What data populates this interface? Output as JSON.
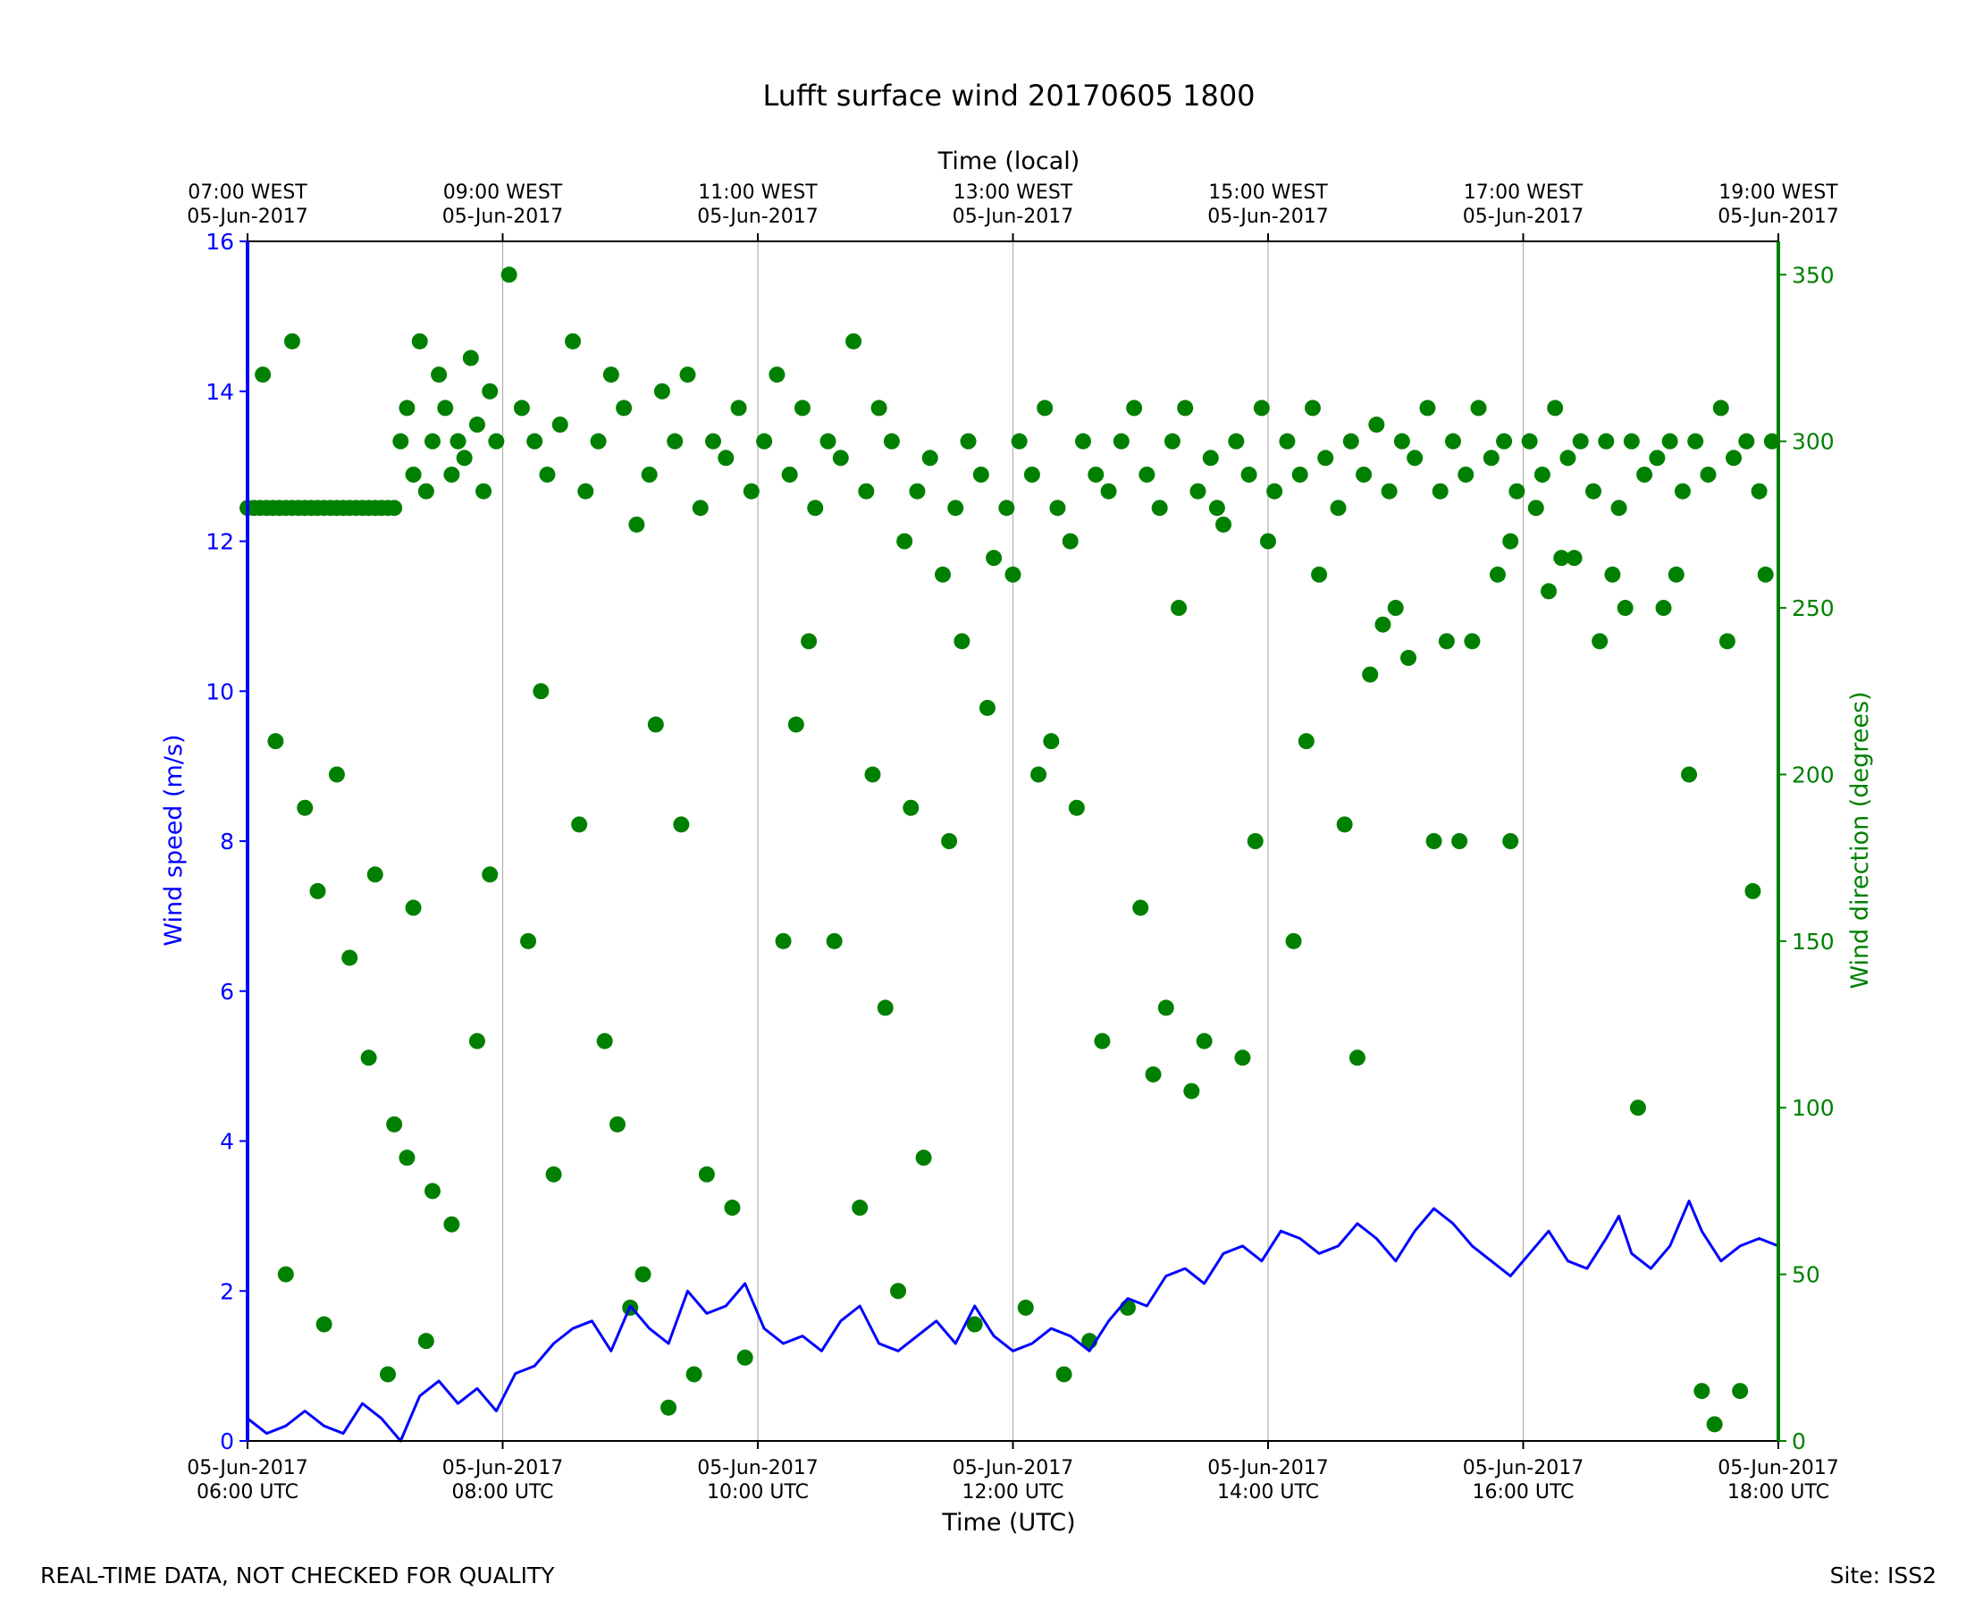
{
  "chart_data": {
    "type": "line",
    "title": "Lufft surface wind 20170605 1800",
    "xlabel": "Time (UTC)",
    "top_xlabel": "Time (local)",
    "ylabel": "Wind speed (m/s)",
    "y2label": "Wind direction (degrees)",
    "ylim": [
      0,
      16
    ],
    "y2lim": [
      0,
      360
    ],
    "xlim_hours": [
      6,
      18
    ],
    "grid": "vertical at major x ticks",
    "yticks": [
      0,
      2,
      4,
      6,
      8,
      10,
      12,
      14,
      16
    ],
    "y2ticks": [
      0,
      50,
      100,
      150,
      200,
      250,
      300,
      350
    ],
    "bottom_ticks": [
      {
        "hour": 6,
        "line1": "05-Jun-2017",
        "line2": "06:00 UTC"
      },
      {
        "hour": 8,
        "line1": "05-Jun-2017",
        "line2": "08:00 UTC"
      },
      {
        "hour": 10,
        "line1": "05-Jun-2017",
        "line2": "10:00 UTC"
      },
      {
        "hour": 12,
        "line1": "05-Jun-2017",
        "line2": "12:00 UTC"
      },
      {
        "hour": 14,
        "line1": "05-Jun-2017",
        "line2": "14:00 UTC"
      },
      {
        "hour": 16,
        "line1": "05-Jun-2017",
        "line2": "16:00 UTC"
      },
      {
        "hour": 18,
        "line1": "05-Jun-2017",
        "line2": "18:00 UTC"
      }
    ],
    "top_ticks": [
      {
        "hour": 6,
        "line1": "07:00 WEST",
        "line2": "05-Jun-2017"
      },
      {
        "hour": 8,
        "line1": "09:00 WEST",
        "line2": "05-Jun-2017"
      },
      {
        "hour": 10,
        "line1": "11:00 WEST",
        "line2": "05-Jun-2017"
      },
      {
        "hour": 12,
        "line1": "13:00 WEST",
        "line2": "05-Jun-2017"
      },
      {
        "hour": 14,
        "line1": "15:00 WEST",
        "line2": "05-Jun-2017"
      },
      {
        "hour": 16,
        "line1": "17:00 WEST",
        "line2": "05-Jun-2017"
      },
      {
        "hour": 18,
        "line1": "19:00 WEST",
        "line2": "05-Jun-2017"
      }
    ],
    "series": [
      {
        "name": "Wind speed",
        "kind": "line",
        "axis": "left",
        "color": "#0000ff",
        "x_hours": [
          6.0,
          6.15,
          6.3,
          6.45,
          6.6,
          6.75,
          6.9,
          7.05,
          7.2,
          7.35,
          7.5,
          7.65,
          7.8,
          7.95,
          8.1,
          8.25,
          8.4,
          8.55,
          8.7,
          8.85,
          9.0,
          9.15,
          9.3,
          9.45,
          9.6,
          9.75,
          9.9,
          10.05,
          10.2,
          10.35,
          10.5,
          10.65,
          10.8,
          10.95,
          11.1,
          11.25,
          11.4,
          11.55,
          11.7,
          11.85,
          12.0,
          12.15,
          12.3,
          12.45,
          12.6,
          12.75,
          12.9,
          13.05,
          13.2,
          13.35,
          13.5,
          13.65,
          13.8,
          13.95,
          14.1,
          14.25,
          14.4,
          14.55,
          14.7,
          14.85,
          15.0,
          15.15,
          15.3,
          15.45,
          15.6,
          15.75,
          15.9,
          16.05,
          16.2,
          16.35,
          16.5,
          16.65,
          16.75,
          16.85,
          17.0,
          17.15,
          17.3,
          17.4,
          17.55,
          17.7,
          17.85,
          18.0
        ],
        "values": [
          0.3,
          0.1,
          0.2,
          0.4,
          0.2,
          0.1,
          0.5,
          0.3,
          0.0,
          0.6,
          0.8,
          0.5,
          0.7,
          0.4,
          0.9,
          1.0,
          1.3,
          1.5,
          1.6,
          1.2,
          1.8,
          1.5,
          1.3,
          2.0,
          1.7,
          1.8,
          2.1,
          1.5,
          1.3,
          1.4,
          1.2,
          1.6,
          1.8,
          1.3,
          1.2,
          1.4,
          1.6,
          1.3,
          1.8,
          1.4,
          1.2,
          1.3,
          1.5,
          1.4,
          1.2,
          1.6,
          1.9,
          1.8,
          2.2,
          2.3,
          2.1,
          2.5,
          2.6,
          2.4,
          2.8,
          2.7,
          2.5,
          2.6,
          2.9,
          2.7,
          2.4,
          2.8,
          3.1,
          2.9,
          2.6,
          2.4,
          2.2,
          2.5,
          2.8,
          2.4,
          2.3,
          2.7,
          3.0,
          2.5,
          2.3,
          2.6,
          3.2,
          2.8,
          2.4,
          2.6,
          2.7,
          2.6
        ]
      },
      {
        "name": "Wind direction",
        "kind": "scatter",
        "axis": "right",
        "color": "#008000",
        "x_hours": [
          6.0,
          6.05,
          6.1,
          6.15,
          6.2,
          6.25,
          6.3,
          6.35,
          6.4,
          6.45,
          6.5,
          6.55,
          6.6,
          6.65,
          6.7,
          6.75,
          6.8,
          6.85,
          6.9,
          6.95,
          7.0,
          7.05,
          7.1,
          7.15,
          7.2,
          7.25,
          7.3,
          7.35,
          7.4,
          7.45,
          7.5,
          7.55,
          7.6,
          7.65,
          7.7,
          7.75,
          7.8,
          7.85,
          7.9,
          7.95,
          8.05,
          8.15,
          8.25,
          8.35,
          8.45,
          8.55,
          8.65,
          8.75,
          8.85,
          8.95,
          9.05,
          9.15,
          9.25,
          9.35,
          9.45,
          9.55,
          9.65,
          9.75,
          9.85,
          9.95,
          10.05,
          10.15,
          10.25,
          10.35,
          10.45,
          10.55,
          10.65,
          10.75,
          10.85,
          10.95,
          11.05,
          11.15,
          11.25,
          11.35,
          11.45,
          11.55,
          11.65,
          11.75,
          11.85,
          11.95,
          12.05,
          12.15,
          12.25,
          12.35,
          12.45,
          12.55,
          12.65,
          12.75,
          12.85,
          12.95,
          13.05,
          13.15,
          13.25,
          13.35,
          13.45,
          13.55,
          13.65,
          13.75,
          13.85,
          13.95,
          14.05,
          14.15,
          14.25,
          14.35,
          14.45,
          14.55,
          14.65,
          14.75,
          14.85,
          14.95,
          15.05,
          15.15,
          15.25,
          15.35,
          15.45,
          15.55,
          15.65,
          15.75,
          15.85,
          15.95,
          16.05,
          16.15,
          16.25,
          16.35,
          16.45,
          16.55,
          16.65,
          16.75,
          16.85,
          16.95,
          17.05,
          17.15,
          17.25,
          17.35,
          17.45,
          17.55,
          17.65,
          17.75,
          17.85,
          17.95,
          6.12,
          6.22,
          6.45,
          6.55,
          6.8,
          6.95,
          7.15,
          7.25,
          7.45,
          7.6,
          8.3,
          8.6,
          8.9,
          9.2,
          9.4,
          9.6,
          10.3,
          10.6,
          10.9,
          11.2,
          11.5,
          11.8,
          12.2,
          12.5,
          12.7,
          13.1,
          13.4,
          13.8,
          14.3,
          14.6,
          14.9,
          15.3,
          15.6,
          15.9,
          16.2,
          16.6,
          16.9,
          17.3,
          17.6,
          17.8,
          6.35,
          6.7,
          7.0,
          7.3,
          7.8,
          8.4,
          8.8,
          9.1,
          9.5,
          9.9,
          10.4,
          10.8,
          11.1,
          11.6,
          12.0,
          12.3,
          12.6,
          13.0,
          13.3,
          13.6,
          14.0,
          14.4,
          14.8,
          15.1,
          15.4,
          15.8,
          16.1,
          16.4,
          16.7,
          17.1,
          17.4,
          17.7,
          6.3,
          6.6,
          7.1,
          7.4,
          7.9,
          8.2,
          9.0,
          9.3,
          9.8,
          10.2,
          11.0,
          11.3,
          11.7,
          12.1,
          12.4,
          12.9,
          13.2,
          13.5,
          13.9,
          14.2,
          14.7,
          15.0,
          15.5,
          15.9,
          16.3,
          16.8,
          17.2,
          17.5,
          17.9
        ],
        "values": [
          280,
          280,
          280,
          280,
          280,
          280,
          280,
          280,
          280,
          280,
          280,
          280,
          280,
          280,
          280,
          280,
          280,
          280,
          280,
          280,
          280,
          280,
          280,
          280,
          300,
          310,
          290,
          330,
          285,
          300,
          320,
          310,
          290,
          300,
          295,
          325,
          305,
          285,
          315,
          300,
          350,
          310,
          300,
          290,
          305,
          330,
          285,
          300,
          320,
          310,
          275,
          290,
          315,
          300,
          320,
          280,
          300,
          295,
          310,
          285,
          300,
          320,
          290,
          310,
          280,
          300,
          295,
          330,
          285,
          310,
          300,
          270,
          285,
          295,
          260,
          280,
          300,
          290,
          265,
          280,
          300,
          290,
          310,
          280,
          270,
          300,
          290,
          285,
          300,
          310,
          290,
          280,
          300,
          310,
          285,
          295,
          275,
          300,
          290,
          310,
          285,
          300,
          290,
          310,
          295,
          280,
          300,
          290,
          305,
          285,
          300,
          295,
          310,
          285,
          300,
          290,
          310,
          295,
          300,
          285,
          300,
          290,
          310,
          295,
          300,
          285,
          300,
          280,
          300,
          290,
          295,
          300,
          285,
          300,
          290,
          310,
          295,
          300,
          285,
          300,
          320,
          210,
          190,
          165,
          145,
          115,
          95,
          85,
          75,
          65,
          225,
          185,
          95,
          215,
          185,
          80,
          215,
          150,
          200,
          190,
          180,
          220,
          200,
          190,
          120,
          110,
          105,
          115,
          210,
          185,
          245,
          180,
          240,
          180,
          255,
          240,
          100,
          200,
          240,
          165,
          330,
          200,
          170,
          160,
          120,
          80,
          120,
          50,
          20,
          25,
          240,
          70,
          45,
          240,
          260,
          210,
          30,
          160,
          250,
          280,
          270,
          260,
          230,
          235,
          240,
          260,
          280,
          265,
          260,
          250,
          15,
          15,
          50,
          35,
          20,
          30,
          170,
          150,
          40,
          10,
          70,
          150,
          130,
          85,
          35,
          40,
          20,
          40,
          130,
          120,
          180,
          150,
          115,
          250,
          180,
          270,
          265,
          250,
          260,
          5,
          260
        ]
      }
    ]
  },
  "footer": {
    "left": "REAL-TIME DATA, NOT CHECKED FOR QUALITY",
    "right": "Site: ISS2"
  }
}
